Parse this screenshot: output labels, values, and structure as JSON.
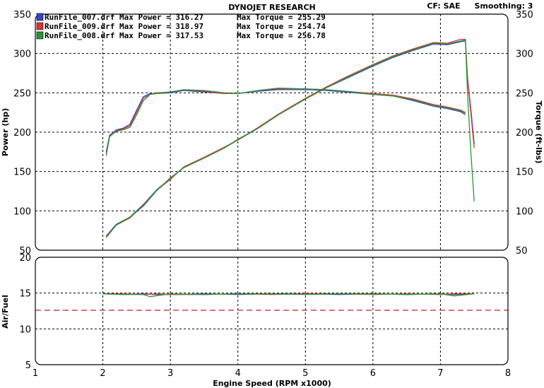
{
  "header": {
    "title": "DYNOJET RESEARCH",
    "cf": "CF: SAE",
    "smoothing": "Smoothing: 3"
  },
  "legend": [
    {
      "file": "RunFile_007.drf",
      "power_label": "Max Power",
      "power_value": "316.27",
      "torque_label": "Max Torque",
      "torque_value": "255.29",
      "color": "#3344cc",
      "icon": "square-swatch-icon"
    },
    {
      "file": "RunFile_009.drf",
      "power_label": "Max Power",
      "power_value": "318.97",
      "torque_label": "Max Torque",
      "torque_value": "254.74",
      "color": "#dd3333",
      "icon": "square-swatch-icon"
    },
    {
      "file": "RunFile_008.drf",
      "power_label": "Max Power",
      "power_value": "317.53",
      "torque_label": "Max Torque",
      "torque_value": "256.78",
      "color": "#229933",
      "icon": "square-swatch-icon"
    }
  ],
  "chart_data": [
    {
      "type": "line",
      "panel": "power-torque",
      "ylabel": "Power (hp)",
      "ylabel_right": "Torque (ft-lbs)",
      "xlim": [
        1,
        8
      ],
      "ylim": [
        50,
        350
      ],
      "y_ticks": [
        "50",
        "100",
        "150",
        "200",
        "250",
        "300",
        "350"
      ],
      "y_ticks_right": [
        "50",
        "100",
        "150",
        "200",
        "250",
        "300",
        "350"
      ],
      "grid": true,
      "series": [
        {
          "name": "RunFile_007.drf",
          "quantity": "Power",
          "color": "#3344cc",
          "x": [
            2.05,
            2.2,
            2.4,
            2.6,
            2.8,
            3.0,
            3.2,
            3.5,
            3.8,
            4.0,
            4.3,
            4.6,
            5.0,
            5.3,
            5.6,
            6.0,
            6.3,
            6.6,
            6.9,
            7.1,
            7.3,
            7.37,
            7.4,
            7.45,
            7.5
          ],
          "y": [
            68,
            83,
            92,
            108,
            127,
            141,
            155,
            167,
            180,
            190,
            205,
            222,
            242,
            256,
            268,
            284,
            295,
            304,
            312,
            311,
            315,
            316,
            270,
            230,
            185
          ]
        },
        {
          "name": "RunFile_009.drf",
          "quantity": "Power",
          "color": "#dd3333",
          "x": [
            2.05,
            2.2,
            2.4,
            2.6,
            2.8,
            3.0,
            3.2,
            3.5,
            3.8,
            4.0,
            4.3,
            4.6,
            5.0,
            5.3,
            5.6,
            6.0,
            6.3,
            6.6,
            6.9,
            7.1,
            7.3,
            7.37,
            7.4,
            7.45,
            7.5
          ],
          "y": [
            67,
            82,
            91,
            107,
            126,
            140,
            156,
            168,
            181,
            190,
            206,
            223,
            243,
            257,
            270,
            286,
            297,
            306,
            314,
            313,
            318,
            318,
            268,
            225,
            180
          ]
        },
        {
          "name": "RunFile_008.drf",
          "quantity": "Power",
          "color": "#229933",
          "x": [
            2.05,
            2.2,
            2.4,
            2.6,
            2.8,
            3.0,
            3.2,
            3.5,
            3.8,
            4.0,
            4.3,
            4.6,
            5.0,
            5.3,
            5.6,
            6.0,
            6.3,
            6.6,
            6.9,
            7.1,
            7.3,
            7.37,
            7.4,
            7.45,
            7.5
          ],
          "y": [
            66,
            82,
            92,
            106,
            126,
            142,
            155,
            167,
            180,
            191,
            205,
            222,
            242,
            256,
            269,
            285,
            296,
            305,
            313,
            312,
            316,
            317,
            250,
            175,
            112
          ]
        },
        {
          "name": "RunFile_007.drf",
          "quantity": "Torque",
          "color": "#3344cc",
          "x": [
            2.05,
            2.1,
            2.2,
            2.3,
            2.4,
            2.5,
            2.6,
            2.7,
            2.8,
            3.0,
            3.2,
            3.5,
            3.8,
            4.0,
            4.3,
            4.6,
            5.0,
            5.3,
            5.6,
            6.0,
            6.3,
            6.6,
            6.9,
            7.1,
            7.3,
            7.37
          ],
          "y": [
            175,
            196,
            203,
            205,
            210,
            228,
            245,
            249,
            249,
            250,
            253,
            251,
            249,
            249,
            252,
            254,
            254,
            253,
            251,
            248,
            246,
            240,
            233,
            230,
            226,
            222
          ]
        },
        {
          "name": "RunFile_009.drf",
          "quantity": "Torque",
          "color": "#dd3333",
          "x": [
            2.05,
            2.1,
            2.2,
            2.3,
            2.4,
            2.5,
            2.6,
            2.7,
            2.8,
            3.0,
            3.2,
            3.5,
            3.8,
            4.0,
            4.3,
            4.6,
            5.0,
            5.3,
            5.6,
            6.0,
            6.3,
            6.6,
            6.9,
            7.1,
            7.3,
            7.37
          ],
          "y": [
            170,
            194,
            202,
            204,
            208,
            225,
            243,
            248,
            250,
            251,
            254,
            252,
            249,
            249,
            253,
            255,
            255,
            254,
            252,
            249,
            247,
            242,
            235,
            232,
            228,
            225
          ]
        },
        {
          "name": "RunFile_008.drf",
          "quantity": "Torque",
          "color": "#229933",
          "x": [
            2.05,
            2.1,
            2.2,
            2.3,
            2.4,
            2.5,
            2.6,
            2.7,
            2.8,
            3.0,
            3.2,
            3.5,
            3.8,
            4.0,
            4.3,
            4.6,
            5.0,
            5.3,
            5.6,
            6.0,
            6.3,
            6.6,
            6.9,
            7.1,
            7.3,
            7.37
          ],
          "y": [
            172,
            195,
            201,
            203,
            206,
            222,
            240,
            248,
            249,
            251,
            254,
            253,
            250,
            249,
            253,
            256,
            255,
            254,
            252,
            248,
            246,
            241,
            234,
            231,
            227,
            224
          ]
        }
      ]
    },
    {
      "type": "line",
      "panel": "air-fuel",
      "ylabel": "Air/Fuel",
      "xlabel": "Engine Speed (RPM x1000)",
      "xlim": [
        1,
        8
      ],
      "ylim": [
        5,
        20
      ],
      "x_ticks": [
        "1",
        "2",
        "3",
        "4",
        "5",
        "6",
        "7",
        "8"
      ],
      "y_ticks": [
        "5",
        "10",
        "15",
        "20"
      ],
      "grid": true,
      "reference_line": {
        "y": 12.6,
        "color": "#cc2222",
        "style": "dashed"
      },
      "series": [
        {
          "name": "RunFile_007.drf",
          "color": "#3344cc",
          "x": [
            2.0,
            2.3,
            2.6,
            2.8,
            3.0,
            3.5,
            4.0,
            4.5,
            5.0,
            5.5,
            6.0,
            6.5,
            7.0,
            7.2,
            7.5
          ],
          "y": [
            14.9,
            14.8,
            14.9,
            14.8,
            14.8,
            14.9,
            14.8,
            14.9,
            14.9,
            14.8,
            14.9,
            14.8,
            14.9,
            14.8,
            14.9
          ]
        },
        {
          "name": "RunFile_009.drf",
          "color": "#dd3333",
          "x": [
            2.0,
            2.3,
            2.6,
            2.8,
            3.0,
            3.5,
            4.0,
            4.5,
            5.0,
            5.5,
            6.0,
            6.5,
            7.0,
            7.2,
            7.5
          ],
          "y": [
            14.9,
            14.9,
            14.8,
            14.9,
            14.8,
            14.8,
            14.9,
            14.8,
            14.9,
            14.9,
            14.8,
            14.9,
            14.8,
            14.9,
            14.9
          ]
        },
        {
          "name": "RunFile_008.drf",
          "color": "#229933",
          "x": [
            2.0,
            2.3,
            2.6,
            2.7,
            3.0,
            3.5,
            4.0,
            4.5,
            5.0,
            5.5,
            6.0,
            6.5,
            7.0,
            7.2,
            7.5
          ],
          "y": [
            14.9,
            14.8,
            14.8,
            14.5,
            14.9,
            14.8,
            14.9,
            14.9,
            14.8,
            14.9,
            14.9,
            14.8,
            14.9,
            14.6,
            14.9
          ]
        }
      ]
    }
  ]
}
